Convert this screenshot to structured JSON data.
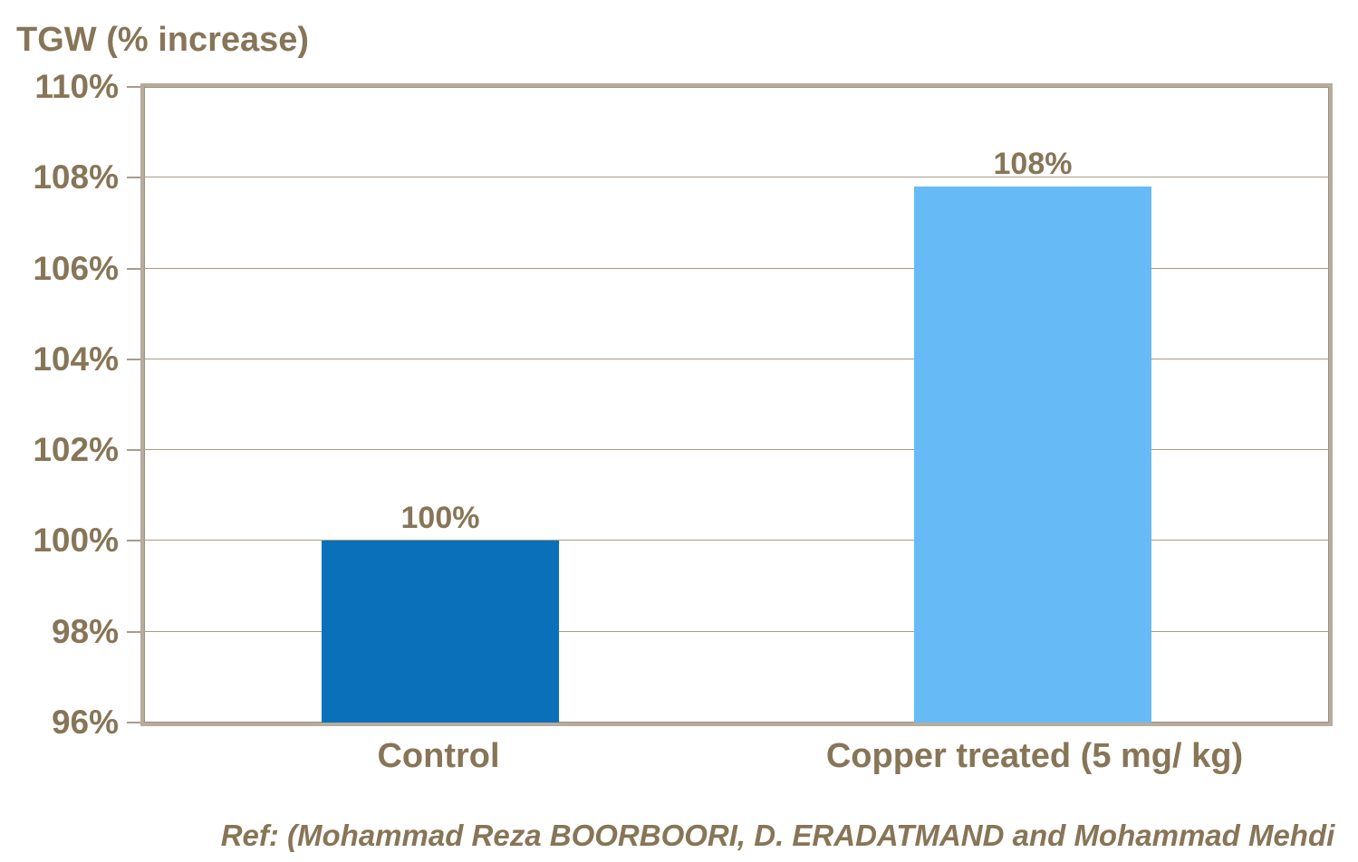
{
  "chart_data": {
    "type": "bar",
    "title": "TGW (% increase)",
    "categories": [
      "Control",
      "Copper treated (5 mg/ kg)"
    ],
    "values": [
      100,
      107.8
    ],
    "value_labels": [
      "100%",
      "108%"
    ],
    "bar_colors": [
      "#0b70ba",
      "#66bbf7"
    ],
    "ylim": [
      96,
      110
    ],
    "ytick_step": 2,
    "ytick_labels": [
      "96%",
      "98%",
      "100%",
      "102%",
      "104%",
      "106%",
      "108%",
      "110%"
    ],
    "grid": true,
    "legend": "none",
    "xlabel": "",
    "ylabel": "TGW (% increase)",
    "text_color": "#877557",
    "axis_border_color": "#b7ac9c",
    "gridline_color": "#a79c8b"
  },
  "footer": {
    "ref_text": "Ref: (Mohammad Reza BOORBOORI, D. ERADATMAND and Mohammad Mehdi"
  }
}
